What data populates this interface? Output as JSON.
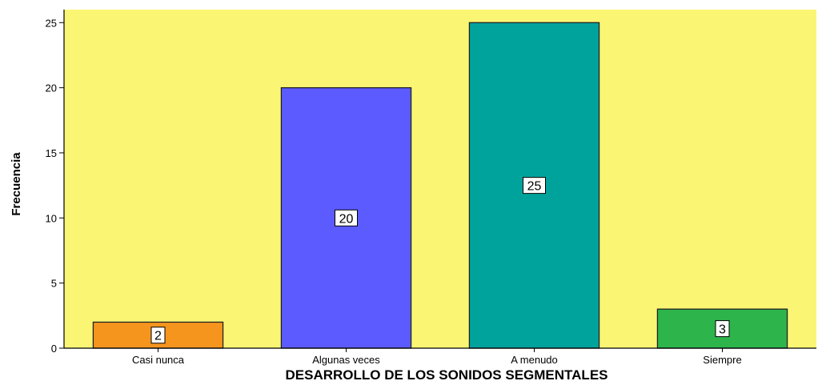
{
  "chart_data": {
    "type": "bar",
    "categories": [
      "Casi nunca",
      "Algunas veces",
      "A menudo",
      "Siempre"
    ],
    "values": [
      2,
      20,
      25,
      3
    ],
    "data_labels": [
      "2",
      "20",
      "25",
      "3"
    ],
    "xlabel": "DESARROLLO  DE LOS SONIDOS SEGMENTALES",
    "ylabel": "Frecuencia",
    "ylim": [
      0,
      26
    ],
    "yticks": [
      0,
      5,
      10,
      15,
      20,
      25
    ],
    "grid": false,
    "legend": "none",
    "colors": {
      "plot_background": "#FAF674",
      "bars": [
        "#F5951E",
        "#5B5BFF",
        "#00A39C",
        "#2DB54B"
      ],
      "bar_outline": "#222222",
      "axis": "#000000"
    }
  }
}
